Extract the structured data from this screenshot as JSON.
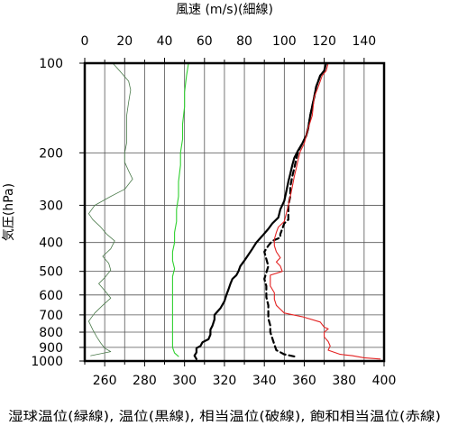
{
  "chart_data": {
    "type": "line",
    "top_axis_label": "風速 (m/s)(細線)",
    "left_axis_label": "気圧(hPa)",
    "bottom_axis_label": "湿球温位(緑線), 温位(黒線), 相当温位(破線), 飽和相当温位(赤線)",
    "top_axis": {
      "range": [
        0,
        150
      ],
      "ticks": [
        0,
        20,
        40,
        60,
        80,
        100,
        120,
        140
      ]
    },
    "bottom_axis": {
      "range": [
        250,
        400
      ],
      "ticks": [
        260,
        280,
        300,
        320,
        340,
        360,
        380,
        400
      ]
    },
    "pressure_axis": {
      "scale": "log",
      "range": [
        1000,
        100
      ],
      "ticks": [
        100,
        200,
        300,
        400,
        500,
        600,
        700,
        800,
        900,
        1000
      ]
    },
    "grid": true,
    "series": [
      {
        "name": "風速",
        "color": "#4a7a4a",
        "style": "thin",
        "axis": "top",
        "points": [
          [
            3,
            960
          ],
          [
            13,
            930
          ],
          [
            10,
            905
          ],
          [
            8,
            870
          ],
          [
            6,
            830
          ],
          [
            4,
            785
          ],
          [
            2,
            735
          ],
          [
            5,
            690
          ],
          [
            9,
            650
          ],
          [
            13,
            615
          ],
          [
            10,
            580
          ],
          [
            7,
            550
          ],
          [
            10,
            525
          ],
          [
            13,
            495
          ],
          [
            12,
            470
          ],
          [
            9,
            445
          ],
          [
            13,
            420
          ],
          [
            15,
            395
          ],
          [
            11,
            375
          ],
          [
            8,
            355
          ],
          [
            4,
            335
          ],
          [
            2,
            320
          ],
          [
            5,
            300
          ],
          [
            13,
            280
          ],
          [
            20,
            265
          ],
          [
            24,
            245
          ],
          [
            22,
            230
          ],
          [
            20,
            215
          ],
          [
            20,
            200
          ],
          [
            21,
            185
          ],
          [
            21,
            165
          ],
          [
            21,
            150
          ],
          [
            22,
            135
          ],
          [
            23,
            123
          ],
          [
            22,
            115
          ],
          [
            18,
            107
          ],
          [
            14,
            100
          ]
        ]
      },
      {
        "name": "湿球温位",
        "color": "#2fd02f",
        "style": "solid",
        "axis": "bottom",
        "points": [
          [
            297,
            965
          ],
          [
            295,
            940
          ],
          [
            294,
            900
          ],
          [
            294,
            850
          ],
          [
            294,
            800
          ],
          [
            294,
            750
          ],
          [
            294,
            700
          ],
          [
            294,
            650
          ],
          [
            294,
            600
          ],
          [
            294,
            560
          ],
          [
            294,
            520
          ],
          [
            295,
            490
          ],
          [
            294,
            460
          ],
          [
            294,
            430
          ],
          [
            295,
            400
          ],
          [
            295,
            370
          ],
          [
            296,
            340
          ],
          [
            296,
            310
          ],
          [
            297,
            280
          ],
          [
            297,
            250
          ],
          [
            298,
            220
          ],
          [
            298,
            200
          ],
          [
            299,
            180
          ],
          [
            299,
            160
          ],
          [
            300,
            140
          ],
          [
            300,
            125
          ],
          [
            301,
            110
          ],
          [
            302,
            100
          ]
        ]
      },
      {
        "name": "温位",
        "color": "#000000",
        "style": "solid",
        "axis": "bottom",
        "points": [
          [
            306,
            985
          ],
          [
            305,
            960
          ],
          [
            306,
            935
          ],
          [
            306,
            905
          ],
          [
            308,
            890
          ],
          [
            309,
            865
          ],
          [
            312,
            845
          ],
          [
            313,
            815
          ],
          [
            313,
            785
          ],
          [
            314,
            760
          ],
          [
            315,
            725
          ],
          [
            315,
            700
          ],
          [
            318,
            665
          ],
          [
            320,
            630
          ],
          [
            321,
            600
          ],
          [
            322,
            575
          ],
          [
            323,
            550
          ],
          [
            324,
            530
          ],
          [
            326,
            515
          ],
          [
            327,
            500
          ],
          [
            328,
            480
          ],
          [
            330,
            460
          ],
          [
            332,
            440
          ],
          [
            334,
            420
          ],
          [
            336,
            400
          ],
          [
            339,
            380
          ],
          [
            342,
            360
          ],
          [
            344,
            345
          ],
          [
            347,
            330
          ],
          [
            348,
            310
          ],
          [
            350,
            290
          ],
          [
            351,
            270
          ],
          [
            352,
            250
          ],
          [
            353,
            235
          ],
          [
            354,
            220
          ],
          [
            355,
            208
          ],
          [
            357,
            196
          ],
          [
            359,
            186
          ],
          [
            361,
            175
          ],
          [
            362,
            165
          ],
          [
            363,
            150
          ],
          [
            365,
            130
          ],
          [
            366,
            120
          ],
          [
            368,
            110
          ],
          [
            370,
            106
          ],
          [
            371,
            100
          ]
        ]
      },
      {
        "name": "相当温位",
        "color": "#000000",
        "style": "dashed",
        "axis": "bottom",
        "points": [
          [
            355,
            965
          ],
          [
            350,
            950
          ],
          [
            346,
            920
          ],
          [
            345,
            880
          ],
          [
            344,
            840
          ],
          [
            343,
            800
          ],
          [
            343,
            760
          ],
          [
            342,
            720
          ],
          [
            342,
            690
          ],
          [
            342,
            650
          ],
          [
            341,
            610
          ],
          [
            341,
            580
          ],
          [
            341,
            560
          ],
          [
            340,
            530
          ],
          [
            341,
            505
          ],
          [
            342,
            480
          ],
          [
            341,
            455
          ],
          [
            340,
            430
          ],
          [
            342,
            410
          ],
          [
            344,
            395
          ],
          [
            348,
            385
          ],
          [
            348,
            375
          ],
          [
            349,
            360
          ],
          [
            350,
            345
          ],
          [
            352,
            335
          ],
          [
            352,
            320
          ],
          [
            352,
            300
          ],
          [
            353,
            280
          ],
          [
            353,
            260
          ],
          [
            354,
            240
          ],
          [
            355,
            225
          ],
          [
            356,
            210
          ],
          [
            357,
            198
          ],
          [
            359,
            186
          ],
          [
            361,
            175
          ],
          [
            362,
            165
          ],
          [
            363,
            150
          ],
          [
            365,
            130
          ],
          [
            366,
            120
          ],
          [
            368,
            110
          ],
          [
            370,
            106
          ],
          [
            371,
            100
          ]
        ]
      },
      {
        "name": "飽和相当温位",
        "color": "#e32222",
        "style": "solid",
        "axis": "bottom",
        "points": [
          [
            398,
            985
          ],
          [
            390,
            975
          ],
          [
            384,
            960
          ],
          [
            378,
            950
          ],
          [
            372,
            920
          ],
          [
            373,
            890
          ],
          [
            372,
            860
          ],
          [
            370,
            830
          ],
          [
            370,
            800
          ],
          [
            372,
            780
          ],
          [
            370,
            770
          ],
          [
            368,
            740
          ],
          [
            359,
            710
          ],
          [
            350,
            690
          ],
          [
            348,
            670
          ],
          [
            346,
            650
          ],
          [
            345,
            620
          ],
          [
            345,
            590
          ],
          [
            343,
            560
          ],
          [
            343,
            530
          ],
          [
            343,
            515
          ],
          [
            349,
            500
          ],
          [
            348,
            480
          ],
          [
            346,
            465
          ],
          [
            348,
            450
          ],
          [
            346,
            430
          ],
          [
            345,
            410
          ],
          [
            345,
            390
          ],
          [
            346,
            370
          ],
          [
            347,
            355
          ],
          [
            350,
            340
          ],
          [
            351,
            320
          ],
          [
            352,
            300
          ],
          [
            353,
            280
          ],
          [
            354,
            260
          ],
          [
            355,
            240
          ],
          [
            356,
            225
          ],
          [
            357,
            210
          ],
          [
            358,
            198
          ],
          [
            360,
            186
          ],
          [
            361,
            175
          ],
          [
            362,
            165
          ],
          [
            364,
            150
          ],
          [
            365,
            130
          ],
          [
            367,
            120
          ],
          [
            369,
            110
          ],
          [
            371,
            106
          ],
          [
            372,
            100
          ]
        ]
      }
    ]
  }
}
